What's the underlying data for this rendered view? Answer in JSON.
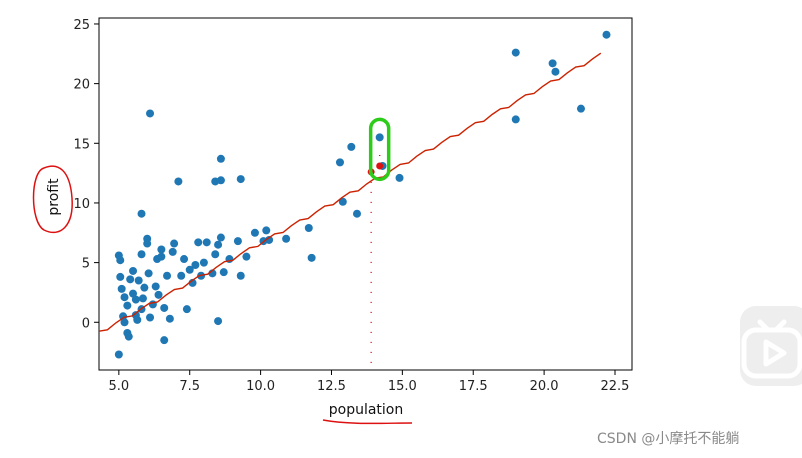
{
  "chart_data": {
    "type": "scatter",
    "title": "",
    "xlabel": "population",
    "ylabel": "profit",
    "xlim": [
      4.3,
      23.1
    ],
    "ylim": [
      -4,
      25.5
    ],
    "xticks": [
      5.0,
      7.5,
      10.0,
      12.5,
      15.0,
      17.5,
      20.0,
      22.5
    ],
    "xtick_labels": [
      "5.0",
      "7.5",
      "10.0",
      "12.5",
      "15.0",
      "17.5",
      "20.0",
      "22.5"
    ],
    "yticks": [
      0,
      5,
      10,
      15,
      20,
      25
    ],
    "ytick_labels": [
      "0",
      "5",
      "10",
      "15",
      "20",
      "25"
    ],
    "grid": false,
    "point_color": "#1f77b4",
    "points": [
      [
        5.0,
        -2.7
      ],
      [
        5.0,
        5.6
      ],
      [
        5.05,
        5.2
      ],
      [
        5.05,
        3.8
      ],
      [
        5.1,
        2.8
      ],
      [
        5.15,
        0.5
      ],
      [
        5.2,
        0.0
      ],
      [
        5.2,
        2.1
      ],
      [
        5.3,
        -0.9
      ],
      [
        5.3,
        1.4
      ],
      [
        5.35,
        -1.2
      ],
      [
        5.4,
        3.6
      ],
      [
        5.5,
        2.4
      ],
      [
        5.5,
        4.3
      ],
      [
        5.6,
        0.6
      ],
      [
        5.6,
        1.9
      ],
      [
        5.65,
        0.2
      ],
      [
        5.7,
        3.5
      ],
      [
        5.8,
        1.1
      ],
      [
        5.8,
        5.7
      ],
      [
        5.85,
        2.0
      ],
      [
        5.9,
        2.9
      ],
      [
        6.0,
        7.0
      ],
      [
        6.0,
        6.6
      ],
      [
        6.05,
        4.1
      ],
      [
        6.1,
        0.4
      ],
      [
        6.2,
        1.5
      ],
      [
        6.3,
        3.0
      ],
      [
        6.35,
        5.3
      ],
      [
        6.4,
        2.3
      ],
      [
        6.5,
        6.1
      ],
      [
        6.5,
        5.5
      ],
      [
        6.6,
        1.2
      ],
      [
        6.6,
        -1.5
      ],
      [
        6.7,
        3.9
      ],
      [
        6.8,
        0.3
      ],
      [
        6.9,
        5.9
      ],
      [
        6.95,
        6.6
      ],
      [
        7.2,
        3.9
      ],
      [
        7.3,
        5.3
      ],
      [
        7.4,
        1.1
      ],
      [
        7.5,
        4.4
      ],
      [
        7.6,
        3.3
      ],
      [
        7.7,
        4.8
      ],
      [
        7.8,
        6.7
      ],
      [
        7.9,
        3.9
      ],
      [
        8.0,
        5.0
      ],
      [
        8.1,
        6.7
      ],
      [
        8.3,
        4.1
      ],
      [
        8.4,
        5.7
      ],
      [
        8.5,
        6.5
      ],
      [
        8.5,
        0.1
      ],
      [
        8.6,
        7.1
      ],
      [
        8.7,
        4.2
      ],
      [
        8.9,
        5.3
      ],
      [
        9.2,
        6.8
      ],
      [
        9.3,
        3.9
      ],
      [
        9.5,
        5.5
      ],
      [
        9.8,
        7.5
      ],
      [
        10.1,
        6.8
      ],
      [
        10.2,
        7.7
      ],
      [
        10.3,
        6.9
      ],
      [
        10.9,
        7.0
      ],
      [
        11.7,
        7.9
      ],
      [
        11.8,
        5.4
      ],
      [
        6.1,
        17.5
      ],
      [
        7.1,
        11.8
      ],
      [
        8.4,
        11.8
      ],
      [
        8.6,
        11.9
      ],
      [
        8.6,
        13.7
      ],
      [
        9.3,
        12.0
      ],
      [
        5.8,
        9.1
      ],
      [
        12.8,
        13.4
      ],
      [
        13.2,
        14.7
      ],
      [
        12.9,
        10.1
      ],
      [
        13.4,
        9.1
      ],
      [
        14.2,
        15.5
      ],
      [
        14.3,
        13.1
      ],
      [
        14.9,
        12.1
      ],
      [
        19.0,
        17.0
      ],
      [
        19.0,
        22.6
      ],
      [
        20.3,
        21.7
      ],
      [
        20.4,
        21.0
      ],
      [
        21.3,
        17.9
      ],
      [
        22.2,
        24.1
      ]
    ],
    "fit_line": [
      [
        4.3,
        -0.9
      ],
      [
        22.0,
        22.4
      ]
    ],
    "fit_color": "#cc2200",
    "annotations": [
      {
        "type": "handwritten-circle",
        "target": "ylabel",
        "color": "#dd1111"
      },
      {
        "type": "handwritten-underline",
        "target": "xlabel",
        "color": "#dd1111"
      },
      {
        "type": "dotted-vertical",
        "x": 13.9,
        "from_y": 12.6,
        "to_y": -4,
        "color": "#dd1111"
      },
      {
        "type": "dotted-vertical",
        "x": 14.2,
        "from_y": 13.1,
        "to_y": 14.6,
        "color": "#dd1111"
      },
      {
        "type": "highlight-box",
        "x": 14.2,
        "y": 15.5,
        "color": "#2ecc1a"
      }
    ]
  },
  "watermark": "CSDN @小摩托不能躺",
  "icons": {
    "play_badge": "play-icon"
  }
}
